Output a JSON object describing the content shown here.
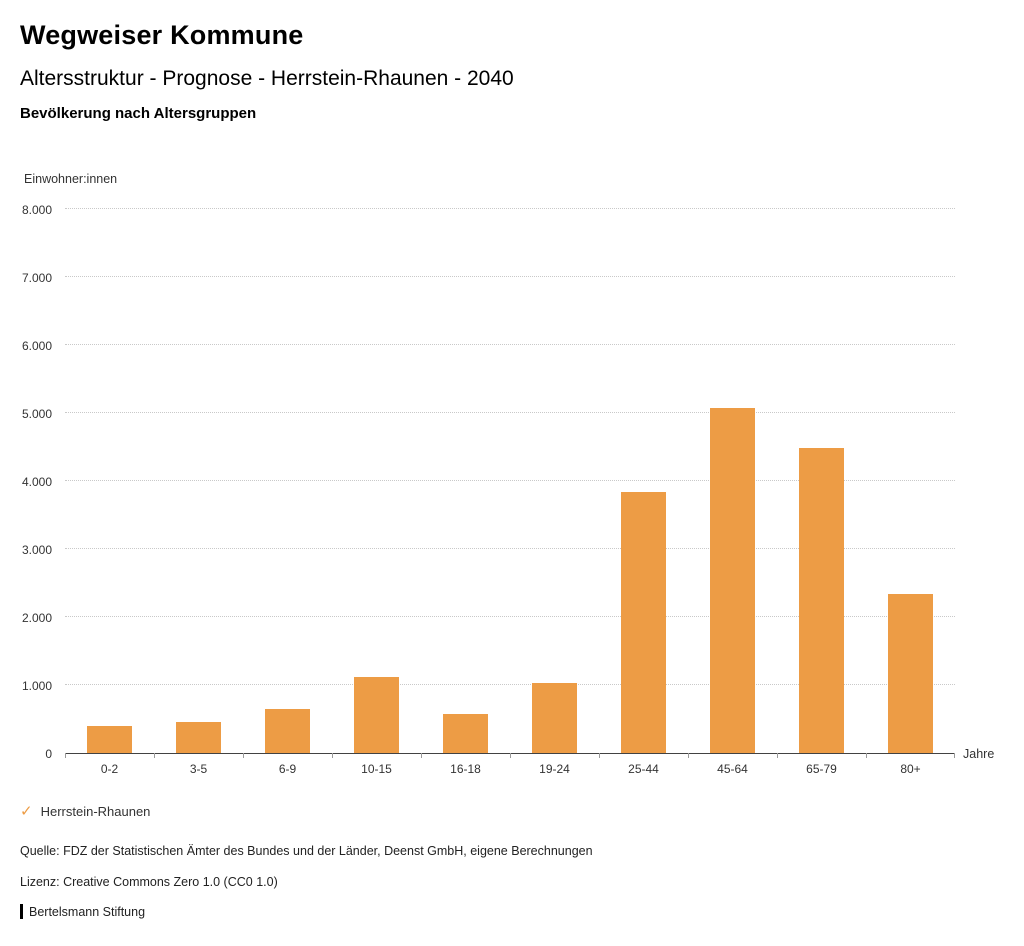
{
  "header": {
    "title": "Wegweiser Kommune",
    "subtitle": "Altersstruktur - Prognose - Herrstein-Rhaunen - 2040",
    "chart_heading": "Bevölkerung nach Altersgruppen"
  },
  "chart_data": {
    "type": "bar",
    "title": "Bevölkerung nach Altersgruppen",
    "ylabel": "Einwohner:innen",
    "xlabel": "Jahre",
    "ylim": [
      0,
      8000
    ],
    "ytick_step": 1000,
    "ytick_labels": [
      "0",
      "1.000",
      "2.000",
      "3.000",
      "4.000",
      "5.000",
      "6.000",
      "7.000",
      "8.000"
    ],
    "grid": true,
    "gridline_style": "dotted",
    "categories": [
      "0-2",
      "3-5",
      "6-9",
      "10-15",
      "16-18",
      "19-24",
      "25-44",
      "45-64",
      "65-79",
      "80+"
    ],
    "series": [
      {
        "name": "Herrstein-Rhaunen",
        "values": [
          400,
          455,
          650,
          1120,
          575,
          1030,
          3840,
          5080,
          4490,
          2340
        ]
      }
    ],
    "bar_color": "#ED9C45",
    "legend_position": "bottom-left"
  },
  "legend": {
    "check_icon": "✓",
    "label": "Herrstein-Rhaunen"
  },
  "footer": {
    "source": "Quelle: FDZ der Statistischen Ämter des Bundes und der Länder, Deenst GmbH, eigene Berechnungen",
    "license": "Lizenz: Creative Commons Zero 1.0 (CC0 1.0)",
    "brand": "Bertelsmann Stiftung"
  }
}
